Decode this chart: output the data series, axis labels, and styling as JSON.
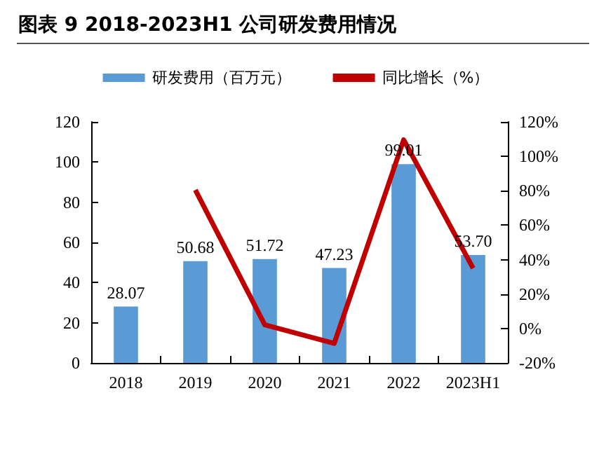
{
  "chart_data": {
    "type": "bar",
    "title": "图表 9 2018-2023H1 公司研发费用情况",
    "categories": [
      "2018",
      "2019",
      "2020",
      "2021",
      "2022",
      "2023H1"
    ],
    "series": [
      {
        "name": "研发费用（百万元）",
        "color": "#5b9bd5",
        "values": [
          28.07,
          50.68,
          51.72,
          47.23,
          99.01,
          53.7
        ],
        "value_labels": [
          "28.07",
          "50.68",
          "51.72",
          "47.23",
          "99.01",
          "53.70"
        ]
      },
      {
        "name": "同比增长（%）",
        "type": "line",
        "axis": "y2",
        "color": "#c00000",
        "values": [
          null,
          80.5,
          2.1,
          -8.7,
          109.6,
          35
        ],
        "marker": "none"
      }
    ],
    "ylim": [
      0,
      120
    ],
    "yticks": [
      0,
      20,
      40,
      60,
      80,
      100,
      120
    ],
    "y2lim": [
      -20,
      120
    ],
    "y2ticks": [
      {
        "value": -20,
        "label": "-20%"
      },
      {
        "value": 0,
        "label": "0%"
      },
      {
        "value": 20,
        "label": "20%"
      },
      {
        "value": 40,
        "label": "40%"
      },
      {
        "value": 60,
        "label": "60%"
      },
      {
        "value": 80,
        "label": "80%"
      },
      {
        "value": 100,
        "label": "100%"
      },
      {
        "value": 120,
        "label": "120%"
      }
    ],
    "grid": false,
    "legend": "top"
  }
}
